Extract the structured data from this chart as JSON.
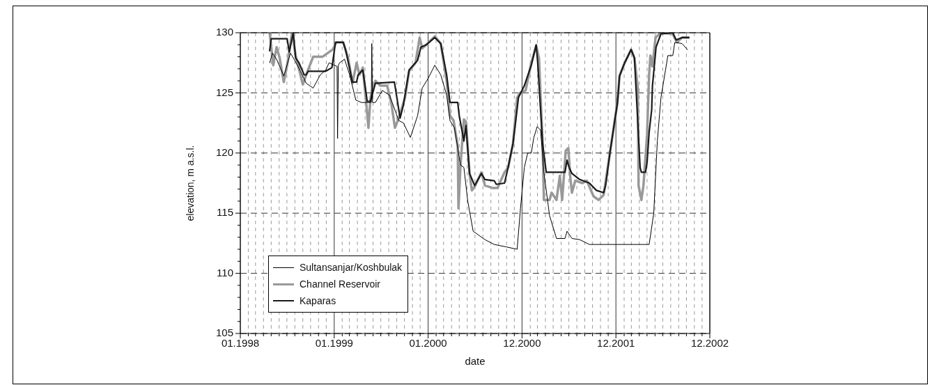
{
  "chart_data": {
    "type": "line",
    "xlabel": "date",
    "ylabel": "elevation, m a.s.l.",
    "xlim": [
      "1998-01-01",
      "2002-12-31"
    ],
    "xticks": [
      {
        "value": "1998-01-01",
        "label": "01.1998"
      },
      {
        "value": "1998-02",
        "label": null
      },
      {
        "value": "1998-03",
        "label": null
      },
      {
        "value": "1998-04",
        "label": null
      },
      {
        "value": "1998-05",
        "label": null
      },
      {
        "value": "1998-06",
        "label": null
      },
      {
        "value": "1998-07",
        "label": null
      },
      {
        "value": "1998-08",
        "label": null
      },
      {
        "value": "1998-09",
        "label": null
      },
      {
        "value": "1998-10",
        "label": null
      },
      {
        "value": "1998-11",
        "label": null
      },
      {
        "value": "1998-12",
        "label": null
      },
      {
        "value": "1999-01-01",
        "label": "01.1999"
      },
      {
        "value": "1999-02",
        "label": null
      },
      {
        "value": "1999-03",
        "label": null
      },
      {
        "value": "1999-04",
        "label": null
      },
      {
        "value": "1999-05",
        "label": null
      },
      {
        "value": "1999-06",
        "label": null
      },
      {
        "value": "1999-07",
        "label": null
      },
      {
        "value": "1999-08",
        "label": null
      },
      {
        "value": "1999-09",
        "label": null
      },
      {
        "value": "1999-10",
        "label": null
      },
      {
        "value": "1999-11",
        "label": null
      },
      {
        "value": "1999-12",
        "label": null
      },
      {
        "value": "2000-01-01",
        "label": "01.2000"
      },
      {
        "value": "2000-02",
        "label": null
      },
      {
        "value": "2000-03",
        "label": null
      },
      {
        "value": "2000-04",
        "label": null
      },
      {
        "value": "2000-05",
        "label": null
      },
      {
        "value": "2000-06",
        "label": null
      },
      {
        "value": "2000-07",
        "label": null
      },
      {
        "value": "2000-08",
        "label": null
      },
      {
        "value": "2000-09",
        "label": null
      },
      {
        "value": "2000-10",
        "label": null
      },
      {
        "value": "2000-11",
        "label": null
      },
      {
        "value": "2000-12",
        "label": null
      },
      {
        "value": "2000-12-31",
        "label": "12.2000"
      },
      {
        "value": "2001-02",
        "label": null
      },
      {
        "value": "2001-03",
        "label": null
      },
      {
        "value": "2001-04",
        "label": null
      },
      {
        "value": "2001-05",
        "label": null
      },
      {
        "value": "2001-06",
        "label": null
      },
      {
        "value": "2001-07",
        "label": null
      },
      {
        "value": "2001-08",
        "label": null
      },
      {
        "value": "2001-09",
        "label": null
      },
      {
        "value": "2001-10",
        "label": null
      },
      {
        "value": "2001-11",
        "label": null
      },
      {
        "value": "2001-12",
        "label": null
      },
      {
        "value": "2001-12-31",
        "label": "12.2001"
      },
      {
        "value": "2002-02",
        "label": null
      },
      {
        "value": "2002-03",
        "label": null
      },
      {
        "value": "2002-04",
        "label": null
      },
      {
        "value": "2002-05",
        "label": null
      },
      {
        "value": "2002-06",
        "label": null
      },
      {
        "value": "2002-07",
        "label": null
      },
      {
        "value": "2002-08",
        "label": null
      },
      {
        "value": "2002-09",
        "label": null
      },
      {
        "value": "2002-10",
        "label": null
      },
      {
        "value": "2002-11",
        "label": null
      },
      {
        "value": "2002-12",
        "label": null
      },
      {
        "value": "2002-12-31",
        "label": "12.2002"
      }
    ],
    "ylim": [
      105,
      130
    ],
    "yticks": [
      105,
      {
        "value": 106,
        "label": null
      },
      {
        "value": 107,
        "label": null
      },
      {
        "value": 108,
        "label": null
      },
      {
        "value": 109,
        "label": null
      },
      110,
      {
        "value": 111,
        "label": null
      },
      {
        "value": 112,
        "label": null
      },
      {
        "value": 113,
        "label": null
      },
      {
        "value": 114,
        "label": null
      },
      115,
      {
        "value": 116,
        "label": null
      },
      {
        "value": 117,
        "label": null
      },
      {
        "value": 118,
        "label": null
      },
      {
        "value": 119,
        "label": null
      },
      120,
      {
        "value": 121,
        "label": null
      },
      {
        "value": 122,
        "label": null
      },
      {
        "value": 123,
        "label": null
      },
      {
        "value": 124,
        "label": null
      },
      125,
      {
        "value": 126,
        "label": null
      },
      {
        "value": 127,
        "label": null
      },
      {
        "value": 128,
        "label": null
      },
      {
        "value": 129,
        "label": null
      },
      130
    ],
    "grid": true,
    "legend": "bottom left",
    "marker": "none",
    "line_style": "solid",
    "series": [
      {
        "name": "Sultansanjar/Koshbulak",
        "color": "#000000",
        "x": [
          "1998-04-25",
          "1998-05-06",
          "1998-05-22",
          "1998-06-19",
          "1998-07-15",
          "1998-07-29",
          "1998-08-23",
          "1998-09-14",
          "1998-10-11",
          "1998-11-08",
          "1998-11-29",
          "1998-12-12",
          "1999-01-01",
          "1999-01-12",
          "1999-01-14",
          "1999-01-17",
          "1999-01-22",
          "1999-02-10",
          "1999-03-02",
          "1999-03-26",
          "1999-04-17",
          "1999-05-25",
          "1999-05-27",
          "1999-05-30",
          "1999-06-10",
          "1999-07-07",
          "1999-08-04",
          "1999-09-09",
          "1999-09-27",
          "1999-10-24",
          "1999-11-21",
          "1999-12-09",
          "2000-01-01",
          "2000-01-27",
          "2000-02-19",
          "2000-03-13",
          "2000-03-26",
          "2000-04-12",
          "2000-05-06",
          "2000-05-19",
          "2000-06-03",
          "2000-06-24",
          "2000-08-09",
          "2000-09-14",
          "2000-10-30",
          "2000-12-12",
          "2000-12-25",
          "2001-01-09",
          "2001-01-22",
          "2001-02-05",
          "2001-02-15",
          "2001-02-28",
          "2001-03-13",
          "2001-03-26",
          "2001-04-17",
          "2001-05-14",
          "2001-06-16",
          "2001-06-24",
          "2001-07-13",
          "2001-08-12",
          "2001-09-19",
          "2002-05-09",
          "2002-05-14",
          "2002-05-27",
          "2002-06-10",
          "2002-06-24",
          "2002-07-21",
          "2002-08-09",
          "2002-08-17",
          "2002-09-14",
          "2002-10-05"
        ],
        "values": [
          127.5,
          128.3,
          127.8,
          126.4,
          128.3,
          127.8,
          126.8,
          125.8,
          125.4,
          126.5,
          126.9,
          127.5,
          127.3,
          127.2,
          121.2,
          127.3,
          127.5,
          127.8,
          126.5,
          124.4,
          124.2,
          124.2,
          129.1,
          124.2,
          124.2,
          125.2,
          124.8,
          122.7,
          122.5,
          121.3,
          123.1,
          125.4,
          126.2,
          127.3,
          126.5,
          124.8,
          122.7,
          122.1,
          119,
          118.8,
          116,
          113.5,
          112.8,
          112.4,
          112.2,
          112.0,
          115.4,
          118.8,
          120,
          120,
          121.3,
          122.2,
          121.9,
          118.4,
          114.8,
          112.9,
          112.9,
          113.5,
          112.9,
          112.8,
          112.4,
          112.4,
          113.1,
          115,
          121,
          124.6,
          128.1,
          128.1,
          129.2,
          129.1,
          128.6
        ]
      },
      {
        "name": "Channel Reservoir",
        "color": "#999999",
        "x": [
          "1998-04-25",
          "1998-05-09",
          "1998-05-22",
          "1998-06-03",
          "1998-06-19",
          "1998-07-02",
          "1998-07-21",
          "1998-08-04",
          "1998-09-01",
          "1998-09-14",
          "1998-10-11",
          "1998-11-16",
          "1998-12-26",
          "1999-01-09",
          "1999-02-05",
          "1999-02-24",
          "1999-03-13",
          "1999-03-29",
          "1999-04-09",
          "1999-04-22",
          "1999-05-06",
          "1999-05-14",
          "1999-05-22",
          "1999-06-10",
          "1999-06-29",
          "1999-07-26",
          "1999-08-12",
          "1999-08-25",
          "1999-09-09",
          "1999-10-03",
          "1999-10-19",
          "1999-11-13",
          "1999-11-29",
          "1999-12-09",
          "1999-12-25",
          "2000-01-27",
          "2000-02-19",
          "2000-03-13",
          "2000-03-26",
          "2000-04-09",
          "2000-04-25",
          "2000-04-28",
          "2000-05-06",
          "2000-05-19",
          "2000-05-27",
          "2000-06-10",
          "2000-06-19",
          "2000-06-30",
          "2000-07-26",
          "2000-08-09",
          "2000-09-06",
          "2000-09-27",
          "2000-10-24",
          "2000-11-07",
          "2000-11-26",
          "2000-12-12",
          "2000-12-23",
          "2001-01-14",
          "2001-02-05",
          "2001-02-24",
          "2001-03-07",
          "2001-03-21",
          "2001-03-26",
          "2001-04-17",
          "2001-04-25",
          "2001-05-14",
          "2001-05-27",
          "2001-06-05",
          "2001-06-19",
          "2001-06-29",
          "2001-07-07",
          "2001-07-13",
          "2001-07-26",
          "2001-08-23",
          "2001-09-09",
          "2001-10-05",
          "2001-10-24",
          "2001-11-13",
          "2001-12-09",
          "2002-01-06",
          "2002-01-14",
          "2002-02-03",
          "2002-02-28",
          "2002-03-13",
          "2002-03-26",
          "2002-03-29",
          "2002-04-09",
          "2002-04-17",
          "2002-05-01",
          "2002-05-09",
          "2002-05-14",
          "2002-05-22",
          "2002-06-03",
          "2002-06-24",
          "2002-08-09",
          "2002-08-25",
          "2002-09-14",
          "2002-10-10"
        ],
        "values": [
          130,
          127.3,
          128.8,
          127.9,
          125.9,
          127.3,
          130,
          128.1,
          125.7,
          126.5,
          128,
          128,
          128.6,
          129.2,
          129.2,
          127.9,
          125.8,
          127.5,
          126.5,
          127.1,
          124,
          122.1,
          124.6,
          126,
          125.6,
          125.6,
          124,
          122.1,
          122.9,
          124.6,
          126.8,
          127.5,
          129.6,
          128.7,
          129,
          129.7,
          129.1,
          126,
          123.1,
          122.7,
          120.6,
          115.4,
          119,
          122.8,
          122.6,
          118.3,
          116.9,
          117.2,
          118.4,
          117.3,
          117.1,
          117.1,
          118.4,
          118.8,
          120.8,
          124.6,
          125,
          125.2,
          127.5,
          128.9,
          127.9,
          120.8,
          116.1,
          116.1,
          116.7,
          116.1,
          118.1,
          116.1,
          120.2,
          120.4,
          117.9,
          116.7,
          117.7,
          117.5,
          117.7,
          116.4,
          116.1,
          116.5,
          120.2,
          124.2,
          126.4,
          127.5,
          128.6,
          127.9,
          125.4,
          117.3,
          116.1,
          117.3,
          121.5,
          126.5,
          128.1,
          127.2,
          129.6,
          130,
          129.9,
          129.2,
          129.6,
          129.6
        ]
      },
      {
        "name": "Kaparas",
        "color": "#1a1a1a",
        "x": [
          "1998-04-25",
          "1998-05-01",
          "1998-07-02",
          "1998-07-10",
          "1998-07-26",
          "1998-08-04",
          "1998-08-17",
          "1998-09-06",
          "1998-09-14",
          "1998-09-22",
          "1998-11-29",
          "1998-12-23",
          "1999-01-06",
          "1999-02-05",
          "1999-02-15",
          "1999-03-02",
          "1999-03-13",
          "1999-03-29",
          "1999-04-04",
          "1999-04-22",
          "1999-05-01",
          "1999-05-09",
          "1999-05-22",
          "1999-06-10",
          "1999-08-23",
          "1999-09-06",
          "1999-09-14",
          "1999-09-27",
          "1999-10-19",
          "1999-11-21",
          "1999-12-04",
          "1999-12-25",
          "2000-01-27",
          "2000-02-19",
          "2000-03-13",
          "2000-03-26",
          "2000-04-25",
          "2000-05-01",
          "2000-05-19",
          "2000-05-27",
          "2000-06-10",
          "2000-06-30",
          "2000-07-26",
          "2000-08-09",
          "2000-09-14",
          "2000-09-22",
          "2000-10-24",
          "2000-11-07",
          "2000-11-26",
          "2000-12-09",
          "2000-12-17",
          "2001-01-09",
          "2001-02-05",
          "2001-02-24",
          "2001-03-02",
          "2001-03-21",
          "2001-04-04",
          "2001-04-17",
          "2001-06-16",
          "2001-06-24",
          "2001-07-02",
          "2001-07-13",
          "2001-08-12",
          "2001-09-19",
          "2001-10-16",
          "2001-11-13",
          "2001-11-21",
          "2001-12-09",
          "2002-01-06",
          "2002-01-14",
          "2002-02-03",
          "2002-02-28",
          "2002-03-13",
          "2002-04-04",
          "2002-04-09",
          "2002-04-25",
          "2002-05-01",
          "2002-05-09",
          "2002-05-19",
          "2002-05-22",
          "2002-06-05",
          "2002-06-24",
          "2002-08-09",
          "2002-08-22",
          "2002-09-14",
          "2002-10-10"
        ],
        "values": [
          128.5,
          129.5,
          129.5,
          128.4,
          130,
          127.9,
          127.5,
          126.5,
          126.5,
          126.8,
          126.8,
          127.1,
          129.2,
          129.2,
          128.5,
          127,
          125.9,
          125.9,
          126.5,
          126.9,
          125.6,
          124.3,
          124.3,
          125.8,
          125.9,
          124.0,
          122.9,
          124,
          126.9,
          127.7,
          128.8,
          129,
          129.6,
          129.1,
          126.5,
          124.2,
          124.2,
          123.1,
          121,
          122.3,
          118.3,
          117.3,
          118.3,
          117.8,
          117.7,
          117.4,
          117.5,
          118.8,
          120.8,
          123.1,
          124.6,
          125.6,
          127.3,
          129,
          127.5,
          120.8,
          118.4,
          118.4,
          118.4,
          119.4,
          118.8,
          118.3,
          117.8,
          117.5,
          116.9,
          116.7,
          117.3,
          120.2,
          124.2,
          126.4,
          127.5,
          128.6,
          127.9,
          118.8,
          118.4,
          118.4,
          119.2,
          121.7,
          123.6,
          125.6,
          128.8,
          129.9,
          130,
          129.4,
          129.6,
          129.6
        ]
      }
    ]
  }
}
